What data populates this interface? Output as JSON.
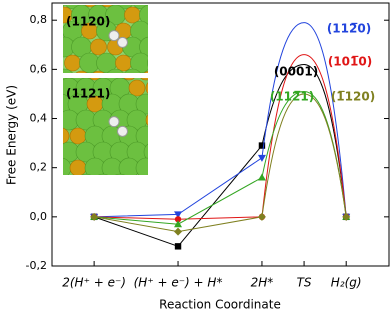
{
  "chart_data": {
    "type": "line",
    "x_label": "Reaction Coordinate",
    "y_label": "Free Energy (eV)",
    "categories": [
      "2(H⁺ + e⁻)",
      "(H⁺ + e⁻) + H*",
      "2H*",
      "TS",
      "H₂(g)"
    ],
    "series": [
      {
        "name": "(0001)",
        "color": "#000000",
        "marker": "square",
        "values": [
          0,
          -0.12,
          0.29,
          0.62,
          0
        ]
      },
      {
        "name": "(112̅0)",
        "color": "#2244dd",
        "marker": "triangle-down",
        "values": [
          0,
          0.01,
          0.24,
          0.79,
          0
        ]
      },
      {
        "name": "(101̅0)",
        "color": "#e01515",
        "marker": "circle",
        "values": [
          0,
          -0.01,
          0,
          0.66,
          0
        ]
      },
      {
        "name": "(112̅1)",
        "color": "#33a622",
        "marker": "triangle-up",
        "values": [
          0,
          -0.03,
          0.16,
          0.51,
          0
        ]
      },
      {
        "name": "(1̅120)",
        "color": "#7f8020",
        "marker": "diamond",
        "values": [
          0,
          -0.06,
          0,
          0.5,
          0
        ]
      }
    ],
    "insets": [
      "(1120)",
      "(1121)"
    ],
    "ylim": [
      -0.2,
      0.87
    ],
    "yticks": [
      {
        "value": -0.2,
        "label": "-0,2"
      },
      {
        "value": 0,
        "label": "0,0"
      },
      {
        "value": 0.2,
        "label": "0,2"
      },
      {
        "value": 0.4,
        "label": "0,4"
      },
      {
        "value": 0.6,
        "label": "0,6"
      },
      {
        "value": 0.8,
        "label": "0,8"
      }
    ]
  }
}
